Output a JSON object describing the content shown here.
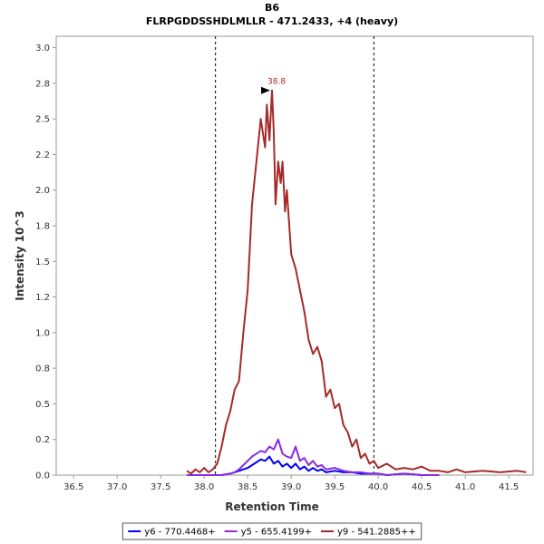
{
  "chart_data": {
    "type": "line",
    "title": "B6",
    "subtitle": "FLRPGDDSSHDLMLLR - 471.2433, +4 (heavy)",
    "xlabel": "Retention Time",
    "ylabel": "Intensity 10^3",
    "xlim": [
      36.3,
      41.78
    ],
    "ylim": [
      0,
      3.08
    ],
    "x_ticks": [
      "36.5",
      "37.0",
      "37.5",
      "38.0",
      "38.5",
      "39.0",
      "39.5",
      "40.0",
      "40.5",
      "41.0",
      "41.5"
    ],
    "y_ticks": [
      "0.0",
      "0.2",
      "0.5",
      "0.8",
      "1.0",
      "1.2",
      "1.5",
      "1.8",
      "2.0",
      "2.2",
      "2.5",
      "2.8",
      "3.0"
    ],
    "grid": false,
    "legend_position": "bottom",
    "integration_boundaries": [
      38.13,
      39.95
    ],
    "peak_annotation": {
      "label": "38.8",
      "x": 38.79,
      "y": 2.7,
      "color": "#b22222"
    },
    "series": [
      {
        "name": "y6 - 770.4468+",
        "color": "#0000ff",
        "x": [
          37.8,
          37.95,
          38.1,
          38.2,
          38.3,
          38.35,
          38.4,
          38.45,
          38.5,
          38.55,
          38.6,
          38.65,
          38.7,
          38.75,
          38.8,
          38.85,
          38.9,
          38.95,
          39.0,
          39.05,
          39.1,
          39.15,
          39.2,
          39.25,
          39.3,
          39.35,
          39.4,
          39.5,
          39.6,
          39.7,
          39.8,
          39.9,
          40.0,
          40.1,
          40.3,
          40.5,
          40.7
        ],
        "values": [
          0,
          0,
          0,
          0,
          0.01,
          0.02,
          0.03,
          0.04,
          0.05,
          0.07,
          0.09,
          0.11,
          0.1,
          0.13,
          0.08,
          0.1,
          0.06,
          0.08,
          0.05,
          0.08,
          0.04,
          0.06,
          0.03,
          0.05,
          0.03,
          0.04,
          0.02,
          0.03,
          0.02,
          0.02,
          0.01,
          0.01,
          0.01,
          0,
          0.01,
          0,
          0
        ]
      },
      {
        "name": "y5 - 655.4199+",
        "color": "#8a2be2",
        "x": [
          37.8,
          37.95,
          38.1,
          38.2,
          38.3,
          38.35,
          38.4,
          38.45,
          38.5,
          38.55,
          38.6,
          38.65,
          38.7,
          38.75,
          38.8,
          38.85,
          38.9,
          38.95,
          39.0,
          39.05,
          39.1,
          39.15,
          39.2,
          39.25,
          39.3,
          39.35,
          39.4,
          39.5,
          39.6,
          39.7,
          39.8,
          39.9,
          40.0,
          40.1,
          40.3,
          40.5,
          40.7
        ],
        "values": [
          0,
          0,
          0,
          0,
          0.01,
          0.02,
          0.04,
          0.07,
          0.1,
          0.13,
          0.15,
          0.17,
          0.16,
          0.2,
          0.18,
          0.25,
          0.15,
          0.13,
          0.12,
          0.2,
          0.1,
          0.12,
          0.07,
          0.1,
          0.06,
          0.07,
          0.04,
          0.05,
          0.03,
          0.02,
          0.02,
          0.01,
          0.01,
          0,
          0.01,
          0,
          0
        ]
      },
      {
        "name": "y9 - 541.2885++",
        "color": "#a52a2a",
        "x": [
          37.8,
          37.85,
          37.9,
          37.95,
          38.0,
          38.05,
          38.1,
          38.15,
          38.2,
          38.25,
          38.3,
          38.35,
          38.4,
          38.45,
          38.5,
          38.55,
          38.6,
          38.65,
          38.7,
          38.72,
          38.75,
          38.78,
          38.8,
          38.82,
          38.85,
          38.88,
          38.9,
          38.93,
          38.95,
          39.0,
          39.05,
          39.1,
          39.15,
          39.2,
          39.25,
          39.3,
          39.35,
          39.4,
          39.45,
          39.5,
          39.55,
          39.6,
          39.65,
          39.7,
          39.75,
          39.8,
          39.85,
          39.9,
          39.95,
          40.0,
          40.1,
          40.2,
          40.3,
          40.4,
          40.5,
          40.6,
          40.7,
          40.8,
          40.9,
          41.0,
          41.2,
          41.4,
          41.6,
          41.7
        ],
        "values": [
          0.03,
          0.01,
          0.04,
          0.02,
          0.05,
          0.02,
          0.04,
          0.08,
          0.2,
          0.35,
          0.45,
          0.6,
          0.66,
          1.0,
          1.3,
          1.9,
          2.2,
          2.5,
          2.3,
          2.6,
          2.35,
          2.7,
          2.4,
          1.9,
          2.2,
          2.05,
          2.2,
          1.85,
          2.0,
          1.55,
          1.45,
          1.3,
          1.15,
          0.95,
          0.85,
          0.9,
          0.8,
          0.55,
          0.6,
          0.47,
          0.5,
          0.35,
          0.3,
          0.2,
          0.25,
          0.12,
          0.15,
          0.08,
          0.1,
          0.05,
          0.08,
          0.04,
          0.05,
          0.04,
          0.06,
          0.03,
          0.03,
          0.02,
          0.04,
          0.02,
          0.03,
          0.02,
          0.03,
          0.02
        ]
      }
    ]
  }
}
